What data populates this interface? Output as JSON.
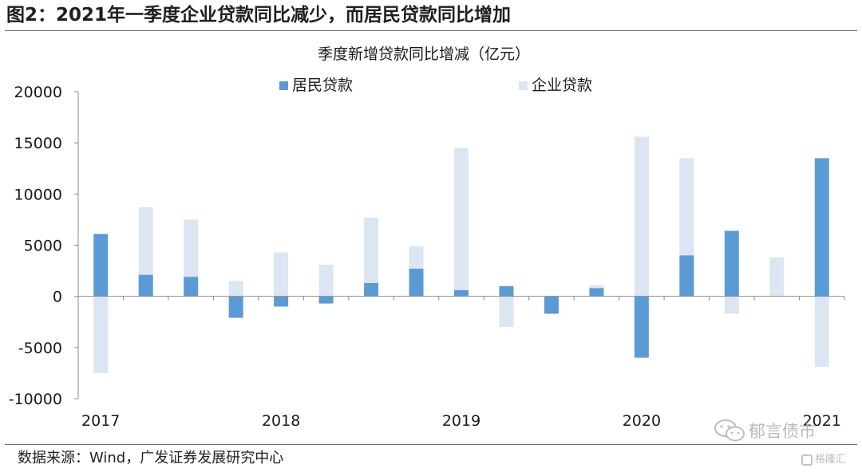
{
  "figure": {
    "title": "图2：2021年一季度企业贷款同比减少，而居民贷款同比增加",
    "source": "数据来源：Wind，广发证券发展研究中心",
    "watermark": "郁言债市",
    "corner_logo": "格隆汇",
    "icons": {
      "watermark": "wechat-icon",
      "corner": "gelonghui-logo-icon"
    }
  },
  "chart_data": {
    "type": "bar",
    "title": "季度新增贷款同比增减（亿元）",
    "xlabel": "",
    "ylabel": "",
    "ylim": [
      -10000,
      20000
    ],
    "yticks": [
      -10000,
      -5000,
      0,
      5000,
      10000,
      15000,
      20000
    ],
    "ytick_labels": [
      "-10000",
      "-5000",
      "0",
      "5000",
      "10000",
      "15000",
      "20000"
    ],
    "grid": false,
    "legend_position": "top",
    "categories": [
      "2017Q1",
      "2017Q2",
      "2017Q3",
      "2017Q4",
      "2018Q1",
      "2018Q2",
      "2018Q3",
      "2018Q4",
      "2019Q1",
      "2019Q2",
      "2019Q3",
      "2019Q4",
      "2020Q1",
      "2020Q2",
      "2020Q3",
      "2020Q4",
      "2021Q1"
    ],
    "x_tick_labels": [
      {
        "label": "2017",
        "index": 0
      },
      {
        "label": "2018",
        "index": 4
      },
      {
        "label": "2019",
        "index": 8
      },
      {
        "label": "2020",
        "index": 12
      },
      {
        "label": "2021",
        "index": 16
      }
    ],
    "series": [
      {
        "name": "居民贷款",
        "color": "#5b9bd5",
        "values": [
          6100,
          2100,
          1900,
          -2100,
          -1000,
          -700,
          1300,
          2700,
          600,
          1000,
          -1700,
          800,
          -6000,
          4000,
          6400,
          0,
          13500
        ]
      },
      {
        "name": "企业贷款",
        "color": "#dce6f2",
        "values": [
          -7500,
          8700,
          7500,
          1500,
          4300,
          3100,
          7700,
          4900,
          14500,
          -3000,
          0,
          1100,
          15600,
          13500,
          -1700,
          3800,
          -6900
        ]
      }
    ]
  }
}
